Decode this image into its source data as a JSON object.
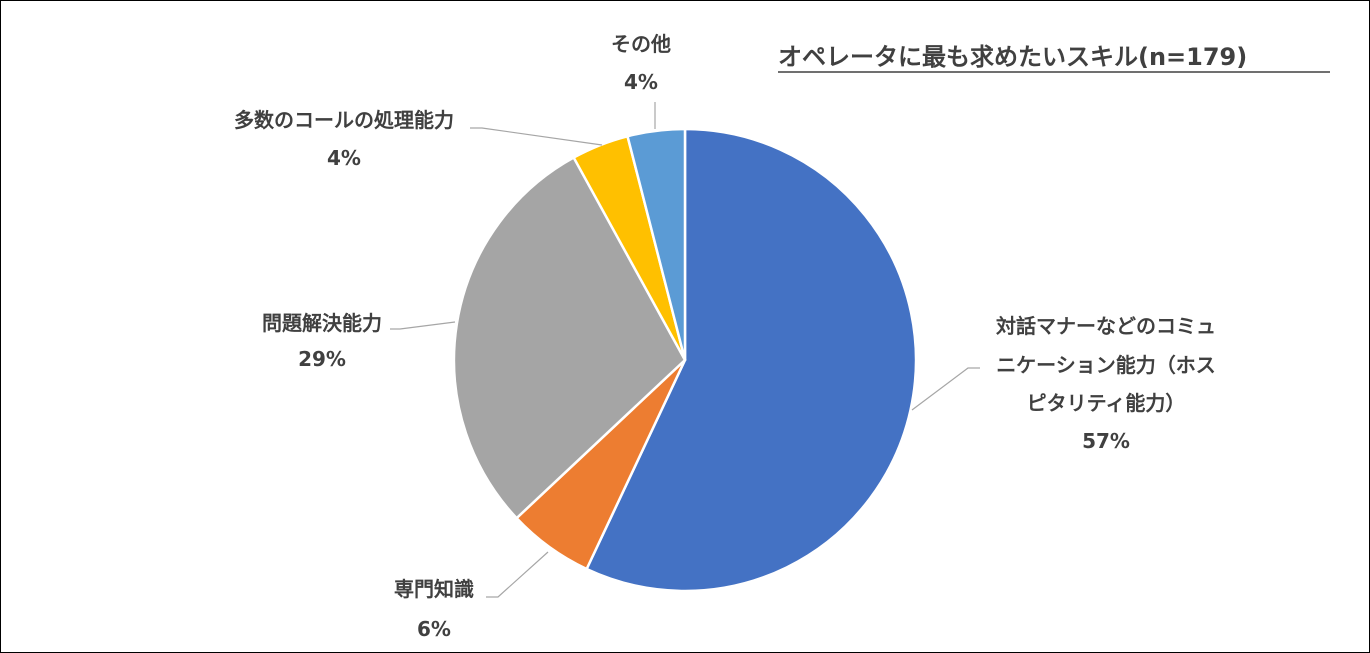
{
  "chart_data": {
    "type": "pie",
    "title": "オペレータに最も求めたいスキル(n=179)",
    "start_angle_deg": 0,
    "direction": "clockwise",
    "slices": [
      {
        "key": "taiwa",
        "label_lines": [
          "対話マナーなどのコミュ",
          "ニケーション能力（ホス",
          "ピタリティ能力）"
        ],
        "value": 57,
        "value_label": "57%",
        "color": "#4472C4"
      },
      {
        "key": "senmon",
        "label_lines": [
          "専門知識"
        ],
        "value": 6,
        "value_label": "6%",
        "color": "#ED7D31"
      },
      {
        "key": "mondai",
        "label_lines": [
          "問題解決能力"
        ],
        "value": 29,
        "value_label": "29%",
        "color": "#A5A5A5"
      },
      {
        "key": "tasu",
        "label_lines": [
          "多数のコールの処理能力"
        ],
        "value": 4,
        "value_label": "4%",
        "color": "#FFC000"
      },
      {
        "key": "sonota",
        "label_lines": [
          "その他"
        ],
        "value": 4,
        "value_label": "4%",
        "color": "#5B9BD5"
      }
    ]
  }
}
